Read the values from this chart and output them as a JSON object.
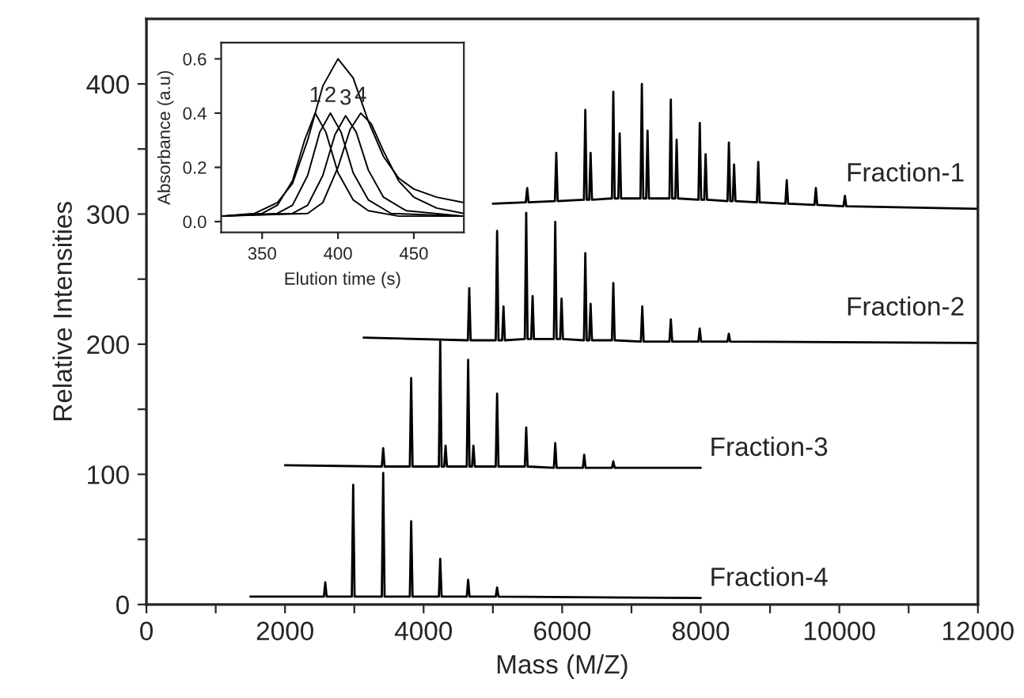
{
  "chart_data": [
    {
      "type": "line",
      "xlabel": "Mass (M/Z)",
      "ylabel": "Relative Intensities",
      "xlim": [
        0,
        12000
      ],
      "ylim": [
        0,
        450
      ],
      "xticks": [
        0,
        {
          "value": 1000,
          "label": null
        },
        2000,
        {
          "value": 3000,
          "label": null
        },
        4000,
        {
          "value": 5000,
          "label": null
        },
        6000,
        {
          "value": 7000,
          "label": null
        },
        8000,
        {
          "value": 9000,
          "label": null
        },
        10000,
        {
          "value": 11000,
          "label": null
        },
        12000
      ],
      "yticks": [
        0,
        {
          "value": 50,
          "label": null
        },
        100,
        {
          "value": 150,
          "label": null
        },
        200,
        {
          "value": 250,
          "label": null
        },
        300,
        {
          "value": 350,
          "label": null
        },
        400
      ],
      "series": [
        {
          "name": "Fraction-1",
          "color": "#000000",
          "x": [
            5000,
            5475,
            5495,
            5515,
            5895,
            5915,
            5935,
            6314,
            6334,
            6354,
            6390,
            6410,
            6430,
            6718,
            6738,
            6758,
            6810,
            6830,
            6850,
            7130,
            7150,
            7170,
            7212,
            7232,
            7252,
            7548,
            7568,
            7588,
            7632,
            7652,
            7672,
            7966,
            7986,
            8006,
            8050,
            8070,
            8090,
            8386,
            8406,
            8426,
            8461,
            8481,
            8501,
            8810,
            8830,
            8850,
            9221,
            9241,
            9261,
            9641,
            9661,
            9681,
            10060,
            10080,
            10100,
            12000
          ],
          "values": [
            308,
            309,
            320,
            309,
            310,
            347,
            310,
            311,
            380,
            311,
            311,
            347,
            311,
            312,
            394,
            312,
            312,
            362,
            312,
            312,
            400,
            312,
            312,
            364,
            312,
            312,
            388,
            312,
            312,
            357,
            312,
            311,
            370,
            311,
            311,
            346,
            311,
            310,
            355,
            310,
            310,
            338,
            310,
            309,
            340,
            309,
            308,
            326,
            308,
            307,
            320,
            307,
            306,
            314,
            306,
            304
          ]
        },
        {
          "name": "Fraction-2",
          "color": "#000000",
          "x": [
            3135,
            4639,
            4659,
            4679,
            5041,
            5061,
            5081,
            5133,
            5153,
            5173,
            5461,
            5481,
            5501,
            5553,
            5573,
            5593,
            5880,
            5900,
            5920,
            5971,
            5991,
            6011,
            6314,
            6334,
            6354,
            6390,
            6410,
            6430,
            6718,
            6738,
            6758,
            7136,
            7156,
            7176,
            7548,
            7568,
            7588,
            7965,
            7985,
            8005,
            8385,
            8405,
            8425,
            12000
          ],
          "values": [
            205,
            203,
            243,
            203,
            203,
            287,
            203,
            203,
            229,
            203,
            204,
            301,
            204,
            204,
            237,
            204,
            204,
            294,
            204,
            204,
            235,
            204,
            203,
            270,
            203,
            203,
            231,
            203,
            203,
            247,
            203,
            202,
            229,
            202,
            202,
            219,
            202,
            202,
            212,
            202,
            202,
            208,
            202,
            201
          ]
        },
        {
          "name": "Fraction-3",
          "color": "#000000",
          "x": [
            2000,
            3397,
            3417,
            3437,
            3801,
            3821,
            3841,
            4220,
            4240,
            4260,
            4297,
            4317,
            4337,
            4623,
            4643,
            4663,
            4699,
            4719,
            4739,
            5041,
            5061,
            5081,
            5461,
            5481,
            5501,
            5880,
            5900,
            5920,
            6298,
            6318,
            6338,
            6718,
            6738,
            6758,
            8000
          ],
          "values": [
            107,
            106,
            120,
            106,
            106,
            174,
            106,
            106,
            202,
            106,
            106,
            122,
            106,
            106,
            188,
            106,
            106,
            122,
            106,
            106,
            162,
            106,
            106,
            136,
            106,
            105,
            124,
            105,
            105,
            115,
            105,
            105,
            110,
            105,
            105
          ]
        },
        {
          "name": "Fraction-4",
          "color": "#000000",
          "x": [
            1500,
            2561,
            2581,
            2601,
            2964,
            2984,
            3004,
            3397,
            3417,
            3437,
            3801,
            3821,
            3841,
            4220,
            4240,
            4260,
            4623,
            4643,
            4663,
            5041,
            5061,
            5081,
            8000
          ],
          "values": [
            6,
            6,
            17,
            6,
            6,
            92,
            6,
            6,
            101,
            6,
            6,
            64,
            6,
            6,
            35,
            6,
            6,
            19,
            6,
            6,
            13,
            6,
            5
          ]
        }
      ]
    },
    {
      "type": "line",
      "xlabel": "Elution time (s)",
      "ylabel": "Absorbance (a.u)",
      "xlim": [
        323,
        483
      ],
      "ylim": [
        -0.04,
        0.66
      ],
      "xticks": [
        350,
        400,
        450
      ],
      "yticks": [
        {
          "value": 0,
          "label": "0.0"
        },
        {
          "value": 0.2,
          "label": "0.2"
        },
        {
          "value": 0.4,
          "label": "0.4"
        },
        {
          "value": 0.6,
          "label": "0.6"
        }
      ],
      "annotations": [
        {
          "text": "1",
          "x": 385,
          "y": 0.4
        },
        {
          "text": "2",
          "x": 395,
          "y": 0.4
        },
        {
          "text": "3",
          "x": 405,
          "y": 0.39
        },
        {
          "text": "4",
          "x": 415,
          "y": 0.4
        }
      ],
      "series": [
        {
          "color": "#000000",
          "x": [
            323,
            350,
            360,
            370,
            378,
            385,
            392,
            400,
            410,
            420,
            440,
            483
          ],
          "values": [
            0.02,
            0.03,
            0.06,
            0.15,
            0.3,
            0.4,
            0.33,
            0.18,
            0.08,
            0.04,
            0.02,
            0.02
          ]
        },
        {
          "color": "#000000",
          "x": [
            323,
            360,
            370,
            380,
            388,
            395,
            402,
            410,
            420,
            435,
            483
          ],
          "values": [
            0.02,
            0.03,
            0.06,
            0.17,
            0.33,
            0.4,
            0.33,
            0.18,
            0.08,
            0.03,
            0.02
          ]
        },
        {
          "color": "#000000",
          "x": [
            323,
            370,
            380,
            390,
            398,
            405,
            412,
            420,
            430,
            445,
            483
          ],
          "values": [
            0.02,
            0.03,
            0.06,
            0.17,
            0.32,
            0.39,
            0.33,
            0.19,
            0.09,
            0.04,
            0.02
          ]
        },
        {
          "color": "#000000",
          "x": [
            323,
            380,
            390,
            400,
            408,
            415,
            422,
            430,
            440,
            450,
            465,
            483
          ],
          "values": [
            0.02,
            0.03,
            0.07,
            0.2,
            0.34,
            0.4,
            0.36,
            0.26,
            0.15,
            0.09,
            0.05,
            0.03
          ]
        },
        {
          "color": "#000000",
          "x": [
            323,
            345,
            360,
            370,
            380,
            390,
            400,
            410,
            420,
            430,
            440,
            450,
            465,
            483
          ],
          "values": [
            0.02,
            0.03,
            0.07,
            0.14,
            0.3,
            0.5,
            0.6,
            0.53,
            0.37,
            0.24,
            0.16,
            0.12,
            0.09,
            0.07
          ]
        }
      ]
    }
  ]
}
